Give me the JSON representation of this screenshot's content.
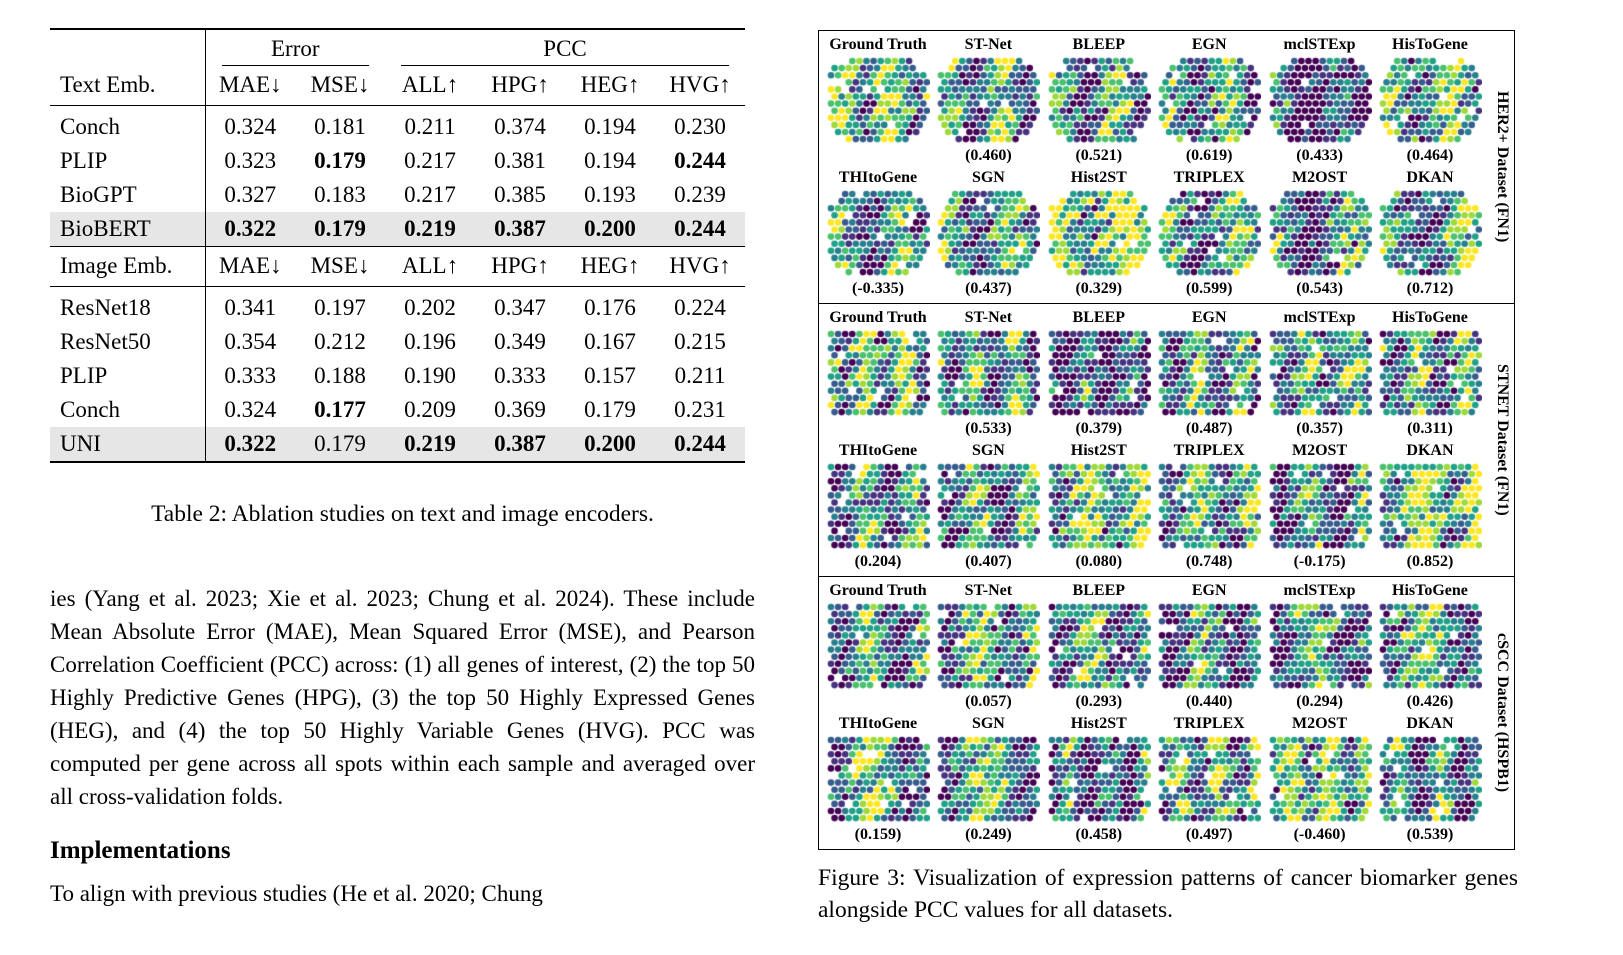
{
  "colors": {
    "highlight_row": "#e6e6e6"
  },
  "table": {
    "caption": "Table 2: Ablation studies on text and image encoders.",
    "group_headers": {
      "error": "Error",
      "pcc": "PCC"
    },
    "sections": [
      {
        "label_header": "Text Emb.",
        "col_headers": [
          "MAE↓",
          "MSE↓",
          "ALL↑",
          "HPG↑",
          "HEG↑",
          "HVG↑"
        ],
        "rows": [
          {
            "label": "Conch",
            "values": [
              "0.324",
              "0.181",
              "0.211",
              "0.374",
              "0.194",
              "0.230"
            ]
          },
          {
            "label": "PLIP",
            "values": [
              "0.323",
              "0.179",
              "0.217",
              "0.381",
              "0.194",
              "0.244"
            ]
          },
          {
            "label": "BioGPT",
            "values": [
              "0.327",
              "0.183",
              "0.217",
              "0.385",
              "0.193",
              "0.239"
            ]
          },
          {
            "label": "BioBERT",
            "values": [
              "0.322",
              "0.179",
              "0.219",
              "0.387",
              "0.200",
              "0.244"
            ]
          }
        ]
      },
      {
        "label_header": "Image Emb.",
        "col_headers": [
          "MAE↓",
          "MSE↓",
          "ALL↑",
          "HPG↑",
          "HEG↑",
          "HVG↑"
        ],
        "rows": [
          {
            "label": "ResNet18",
            "values": [
              "0.341",
              "0.197",
              "0.202",
              "0.347",
              "0.176",
              "0.224"
            ]
          },
          {
            "label": "ResNet50",
            "values": [
              "0.354",
              "0.212",
              "0.196",
              "0.349",
              "0.167",
              "0.215"
            ]
          },
          {
            "label": "PLIP",
            "values": [
              "0.333",
              "0.188",
              "0.190",
              "0.333",
              "0.157",
              "0.211"
            ]
          },
          {
            "label": "Conch",
            "values": [
              "0.324",
              "0.177",
              "0.209",
              "0.369",
              "0.179",
              "0.231"
            ]
          },
          {
            "label": "UNI",
            "values": [
              "0.322",
              "0.179",
              "0.219",
              "0.387",
              "0.200",
              "0.244"
            ]
          }
        ]
      }
    ]
  },
  "body": {
    "paragraph1": "ies (Yang et al. 2023; Xie et al. 2023; Chung et al. 2024). These include Mean Absolute Error (MAE), Mean Squared Error (MSE), and Pearson Correlation Coefficient (PCC) across: (1) all genes of interest, (2) the top 50 Highly Predictive Genes (HPG), (3) the top 50 Highly Expressed Genes (HEG), and (4) the top 50 Highly Variable Genes (HVG). PCC was computed per gene across all spots within each sample and averaged over all cross-validation folds.",
    "heading": "Implementations",
    "paragraph2": "To align with previous studies (He et al. 2020; Chung"
  },
  "figure": {
    "caption": "Figure 3: Visualization of expression patterns of cancer biomarker genes alongside PCC values for all datasets.",
    "datasets": [
      {
        "side_label": "HER2+ Dataset (FN1)",
        "rows": [
          {
            "panels": [
              {
                "label": "Ground Truth",
                "value": ""
              },
              {
                "label": "ST-Net",
                "value": "(0.460)"
              },
              {
                "label": "BLEEP",
                "value": "(0.521)"
              },
              {
                "label": "EGN",
                "value": "(0.619)"
              },
              {
                "label": "mclSTExp",
                "value": "(0.433)"
              },
              {
                "label": "HisToGene",
                "value": "(0.464)"
              }
            ]
          },
          {
            "panels": [
              {
                "label": "THItoGene",
                "value": "(-0.335)"
              },
              {
                "label": "SGN",
                "value": "(0.437)"
              },
              {
                "label": "Hist2ST",
                "value": "(0.329)"
              },
              {
                "label": "TRIPLEX",
                "value": "(0.599)"
              },
              {
                "label": "M2OST",
                "value": "(0.543)"
              },
              {
                "label": "DKAN",
                "value": "(0.712)"
              }
            ]
          }
        ]
      },
      {
        "side_label": "STNET Dataset (FN1)",
        "rows": [
          {
            "panels": [
              {
                "label": "Ground Truth",
                "value": ""
              },
              {
                "label": "ST-Net",
                "value": "(0.533)"
              },
              {
                "label": "BLEEP",
                "value": "(0.379)"
              },
              {
                "label": "EGN",
                "value": "(0.487)"
              },
              {
                "label": "mclSTExp",
                "value": "(0.357)"
              },
              {
                "label": "HisToGene",
                "value": "(0.311)"
              }
            ]
          },
          {
            "panels": [
              {
                "label": "THItoGene",
                "value": "(0.204)"
              },
              {
                "label": "SGN",
                "value": "(0.407)"
              },
              {
                "label": "Hist2ST",
                "value": "(0.080)"
              },
              {
                "label": "TRIPLEX",
                "value": "(0.748)"
              },
              {
                "label": "M2OST",
                "value": "(-0.175)"
              },
              {
                "label": "DKAN",
                "value": "(0.852)"
              }
            ]
          }
        ]
      },
      {
        "side_label": "cSCC Dataset (HSPB1)",
        "rows": [
          {
            "panels": [
              {
                "label": "Ground Truth",
                "value": ""
              },
              {
                "label": "ST-Net",
                "value": "(0.057)"
              },
              {
                "label": "BLEEP",
                "value": "(0.293)"
              },
              {
                "label": "EGN",
                "value": "(0.440)"
              },
              {
                "label": "mclSTExp",
                "value": "(0.294)"
              },
              {
                "label": "HisToGene",
                "value": "(0.426)"
              }
            ]
          },
          {
            "panels": [
              {
                "label": "THItoGene",
                "value": "(0.159)"
              },
              {
                "label": "SGN",
                "value": "(0.249)"
              },
              {
                "label": "Hist2ST",
                "value": "(0.458)"
              },
              {
                "label": "TRIPLEX",
                "value": "(0.497)"
              },
              {
                "label": "M2OST",
                "value": "(-0.460)"
              },
              {
                "label": "DKAN",
                "value": "(0.539)"
              }
            ]
          }
        ]
      }
    ]
  }
}
